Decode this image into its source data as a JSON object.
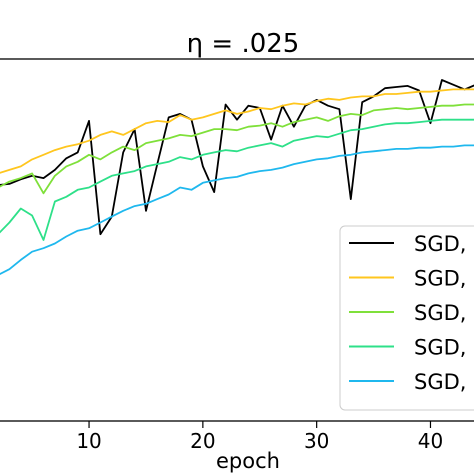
{
  "chart_data": {
    "type": "line",
    "title": "η = .025",
    "xlabel": "epoch",
    "ylabel": "",
    "xlim": [
      2,
      44
    ],
    "ylim": [
      0.7,
      1.01
    ],
    "xticks": [
      10,
      20,
      30,
      40
    ],
    "x": [
      2,
      3,
      4,
      5,
      6,
      7,
      8,
      9,
      10,
      11,
      12,
      13,
      14,
      15,
      16,
      17,
      18,
      19,
      20,
      21,
      22,
      23,
      24,
      25,
      26,
      27,
      28,
      29,
      30,
      31,
      32,
      33,
      34,
      35,
      36,
      37,
      38,
      39,
      40,
      41,
      42,
      43,
      44
    ],
    "series": [
      {
        "name": "SGD,",
        "color": "#000000",
        "values": [
          0.902,
          0.903,
          0.907,
          0.91,
          0.908,
          0.915,
          0.925,
          0.93,
          0.957,
          0.86,
          0.875,
          0.93,
          0.95,
          0.88,
          0.92,
          0.96,
          0.963,
          0.958,
          0.918,
          0.896,
          0.971,
          0.958,
          0.97,
          0.968,
          0.941,
          0.97,
          0.952,
          0.97,
          0.975,
          0.97,
          0.967,
          0.89,
          0.973,
          0.978,
          0.985,
          0.986,
          0.987,
          0.983,
          0.955,
          0.992,
          0.988,
          0.984,
          0.988
        ]
      },
      {
        "name": "SGD,",
        "color": "#ffc61e",
        "values": [
          0.912,
          0.915,
          0.918,
          0.924,
          0.928,
          0.932,
          0.935,
          0.937,
          0.94,
          0.945,
          0.948,
          0.945,
          0.95,
          0.955,
          0.957,
          0.956,
          0.962,
          0.958,
          0.96,
          0.963,
          0.966,
          0.963,
          0.965,
          0.968,
          0.967,
          0.97,
          0.972,
          0.971,
          0.974,
          0.976,
          0.975,
          0.977,
          0.978,
          0.978,
          0.98,
          0.98,
          0.981,
          0.982,
          0.982,
          0.983,
          0.984,
          0.984,
          0.984
        ]
      },
      {
        "name": "SGD,",
        "color": "#7fe03a",
        "values": [
          0.9,
          0.905,
          0.908,
          0.912,
          0.895,
          0.91,
          0.918,
          0.922,
          0.928,
          0.924,
          0.93,
          0.935,
          0.932,
          0.938,
          0.94,
          0.942,
          0.945,
          0.944,
          0.947,
          0.95,
          0.95,
          0.949,
          0.952,
          0.953,
          0.955,
          0.952,
          0.956,
          0.958,
          0.96,
          0.957,
          0.961,
          0.963,
          0.962,
          0.966,
          0.967,
          0.968,
          0.967,
          0.968,
          0.969,
          0.97,
          0.97,
          0.971,
          0.971
        ]
      },
      {
        "name": "SGD,",
        "color": "#2ee089",
        "values": [
          0.86,
          0.87,
          0.882,
          0.876,
          0.855,
          0.888,
          0.892,
          0.898,
          0.9,
          0.905,
          0.91,
          0.912,
          0.914,
          0.918,
          0.92,
          0.922,
          0.926,
          0.924,
          0.928,
          0.93,
          0.932,
          0.931,
          0.934,
          0.936,
          0.938,
          0.935,
          0.94,
          0.942,
          0.944,
          0.943,
          0.946,
          0.949,
          0.95,
          0.952,
          0.954,
          0.955,
          0.955,
          0.956,
          0.957,
          0.958,
          0.958,
          0.958,
          0.958
        ]
      },
      {
        "name": "SGD,",
        "color": "#1fb8ee",
        "values": [
          0.825,
          0.83,
          0.838,
          0.845,
          0.848,
          0.852,
          0.858,
          0.863,
          0.865,
          0.87,
          0.875,
          0.88,
          0.884,
          0.886,
          0.89,
          0.894,
          0.9,
          0.898,
          0.904,
          0.906,
          0.908,
          0.909,
          0.912,
          0.914,
          0.915,
          0.917,
          0.92,
          0.922,
          0.924,
          0.925,
          0.927,
          0.928,
          0.93,
          0.931,
          0.932,
          0.933,
          0.933,
          0.934,
          0.934,
          0.935,
          0.935,
          0.936,
          0.936
        ]
      }
    ],
    "legend_position": "lower-right",
    "grid": false
  }
}
